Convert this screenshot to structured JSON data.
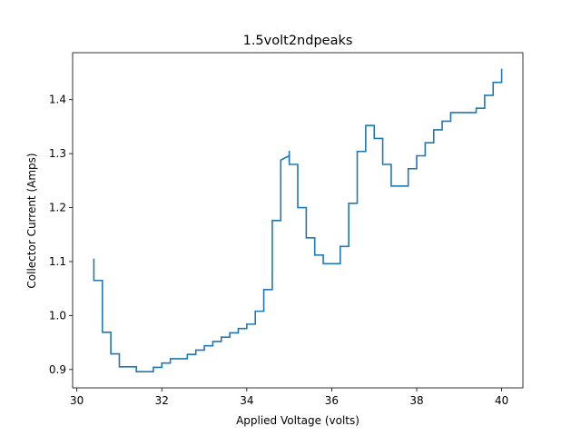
{
  "chart_data": {
    "type": "line",
    "title": "1.5volt2ndpeaks",
    "xlabel": "Applied Voltage (volts)",
    "ylabel": "Collector Current (Amps)",
    "xlim": [
      29.9,
      40.5
    ],
    "ylim": [
      0.866,
      1.487
    ],
    "xticks": [
      30,
      32,
      34,
      36,
      38,
      40
    ],
    "xtick_labels": [
      "30",
      "32",
      "34",
      "36",
      "38",
      "40"
    ],
    "yticks": [
      0.9,
      1.0,
      1.1,
      1.2,
      1.3,
      1.4
    ],
    "ytick_labels": [
      "0.9",
      "1.0",
      "1.1",
      "1.2",
      "1.3",
      "1.4"
    ],
    "grid": false,
    "line_color": "#1f77b4",
    "series": [
      {
        "x": [
          30.4,
          30.4,
          30.6,
          30.6,
          30.8,
          30.8,
          31.0,
          31.0,
          31.4,
          31.4,
          31.8,
          31.8,
          32.0,
          32.0,
          32.2,
          32.2,
          32.6,
          32.6,
          32.8,
          32.8,
          33.0,
          33.0,
          33.2,
          33.2,
          33.4,
          33.4,
          33.6,
          33.6,
          33.8,
          33.8,
          34.0,
          34.0,
          34.2,
          34.2,
          34.4,
          34.4,
          34.6,
          34.6,
          34.8,
          34.8,
          35.0,
          35.0,
          35.2,
          35.2,
          35.4,
          35.4,
          35.6,
          35.6,
          35.8,
          35.8,
          36.2,
          36.2,
          36.4,
          36.4,
          36.6,
          36.6,
          36.8,
          36.8,
          37.0,
          37.0,
          37.2,
          37.2,
          37.4,
          37.4,
          37.8,
          37.8,
          38.0,
          38.0,
          38.2,
          38.2,
          38.4,
          38.4,
          38.6,
          38.6,
          38.8,
          38.8,
          39.4,
          39.4,
          39.6,
          39.6,
          39.8,
          39.8,
          40.0,
          40.0
        ],
        "y": [
          1.104,
          1.065,
          1.065,
          0.969,
          0.969,
          0.929,
          0.929,
          0.905,
          0.905,
          0.896,
          0.896,
          0.904,
          0.904,
          0.912,
          0.912,
          0.92,
          0.92,
          0.928,
          0.928,
          0.936,
          0.936,
          0.944,
          0.944,
          0.952,
          0.952,
          0.96,
          0.96,
          0.968,
          0.968,
          0.976,
          0.976,
          0.984,
          0.984,
          1.008,
          1.008,
          1.048,
          1.048,
          1.176,
          1.176,
          1.288,
          1.296,
          1.28,
          1.28,
          1.2,
          1.2,
          1.144,
          1.144,
          1.112,
          1.112,
          1.096,
          1.096,
          1.128,
          1.128,
          1.208,
          1.208,
          1.304,
          1.304,
          1.352,
          1.352,
          1.328,
          1.328,
          1.28,
          1.28,
          1.24,
          1.24,
          1.272,
          1.272,
          1.296,
          1.296,
          1.32,
          1.32,
          1.344,
          1.344,
          1.36,
          1.36,
          1.376,
          1.376,
          1.384,
          1.384,
          1.408,
          1.408,
          1.432,
          1.432,
          1.456
        ]
      }
    ]
  },
  "extra_segments": [
    {
      "x": [
        35.0,
        35.0
      ],
      "y": [
        1.288,
        1.304
      ]
    }
  ]
}
